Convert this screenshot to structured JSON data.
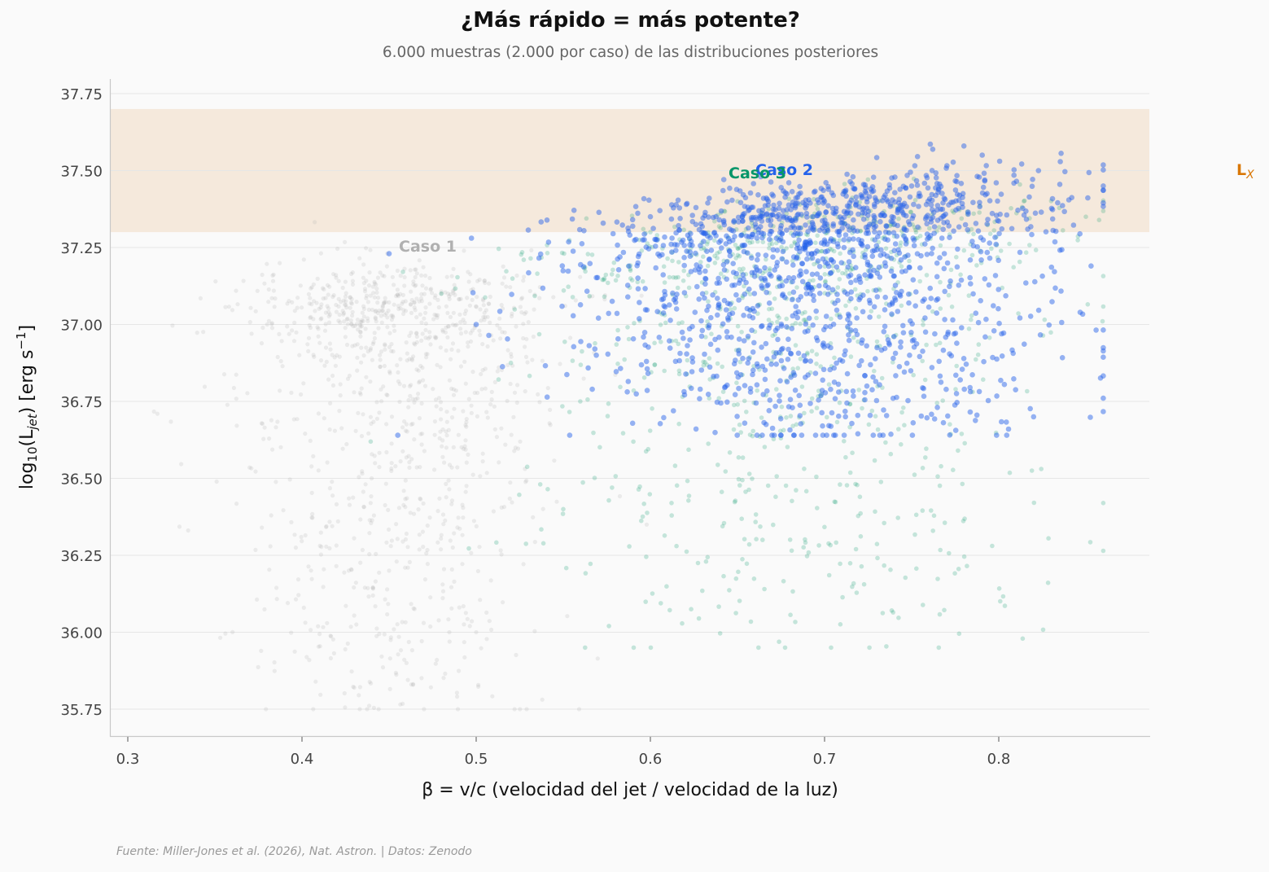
{
  "header": {
    "title": "¿Más rápido = más potente?",
    "subtitle": "6.000 muestras (2.000 por caso) de las distribuciones posteriores"
  },
  "footer": {
    "source": "Fuente: Miller-Jones et al. (2026), Nat. Astron. | Datos: Zenodo"
  },
  "colors": {
    "background": "#fafafa",
    "caso1": "#b0b0b0",
    "caso2": "#2563eb",
    "caso3": "#059669",
    "lx_band": "#f5e9dc",
    "lx_label": "#d97706",
    "grid": "#e6e6e6",
    "axis": "#c8c8c8"
  },
  "chart_data": {
    "type": "scatter",
    "title": "¿Más rápido = más potente?",
    "subtitle": "6.000 muestras (2.000 por caso) de las distribuciones posteriores",
    "xlabel": "β = v/c (velocidad del jet / velocidad de la luz)",
    "ylabel": "log10(L_jet) [erg s^-1]",
    "xlim": [
      0.29,
      0.888
    ],
    "ylim": [
      35.662,
      37.8
    ],
    "x_ticks": [
      "0.3",
      "0.4",
      "0.5",
      "0.6",
      "0.7",
      "0.8"
    ],
    "y_ticks": [
      "35.75",
      "36.00",
      "36.25",
      "36.50",
      "36.75",
      "37.00",
      "37.25",
      "37.50",
      "37.75"
    ],
    "grid": "horizontal",
    "legend": "inline annotations",
    "bands": [
      {
        "label": "L_X",
        "y_range": [
          37.3,
          37.7
        ],
        "color": "#f5e9dc"
      }
    ],
    "annotations": [
      {
        "text": "Caso 1",
        "x": 0.455,
        "y": 37.25,
        "color": "#b0b0b0"
      },
      {
        "text": "Caso 2",
        "x": 0.66,
        "y": 37.5,
        "color": "#2563eb"
      },
      {
        "text": "Caso 3",
        "x": 0.645,
        "y": 37.49,
        "color": "#059669"
      },
      {
        "text": "L_X",
        "x": 0.9,
        "y": 37.5,
        "color": "#d97706"
      }
    ],
    "series": [
      {
        "name": "Caso 1",
        "color": "#b0b0b0",
        "n": 2000,
        "x_mean": 0.455,
        "x_sd": 0.045,
        "y_mode": 37.1,
        "y_range": [
          35.75,
          37.35
        ],
        "sample": [
          [
            0.317,
            36.71
          ],
          [
            0.38,
            37.0
          ],
          [
            0.42,
            36.9
          ],
          [
            0.44,
            36.5
          ],
          [
            0.45,
            36.2
          ],
          [
            0.46,
            35.9
          ],
          [
            0.43,
            35.82
          ],
          [
            0.5,
            36.0
          ],
          [
            0.48,
            37.1
          ]
        ]
      },
      {
        "name": "Caso 2",
        "color": "#2563eb",
        "n": 2000,
        "x_mean": 0.7,
        "x_sd": 0.065,
        "y_mode": 37.38,
        "y_range": [
          36.64,
          37.6
        ],
        "sample": [
          [
            0.45,
            37.23
          ],
          [
            0.5,
            37.0
          ],
          [
            0.6,
            37.35
          ],
          [
            0.7,
            37.4
          ],
          [
            0.75,
            37.45
          ],
          [
            0.78,
            37.58
          ],
          [
            0.86,
            37.45
          ],
          [
            0.853,
            37.19
          ],
          [
            0.82,
            36.7
          ],
          [
            0.455,
            36.64
          ]
        ]
      },
      {
        "name": "Caso 3",
        "color": "#059669",
        "n": 2000,
        "x_mean": 0.68,
        "x_sd": 0.075,
        "y_mode": 37.3,
        "y_range": [
          35.95,
          37.55
        ],
        "sample": [
          [
            0.48,
            37.1
          ],
          [
            0.55,
            36.4
          ],
          [
            0.6,
            37.3
          ],
          [
            0.65,
            37.4
          ],
          [
            0.7,
            37.35
          ],
          [
            0.79,
            37.2
          ],
          [
            0.85,
            37.35
          ],
          [
            0.615,
            36.28
          ]
        ]
      }
    ]
  }
}
